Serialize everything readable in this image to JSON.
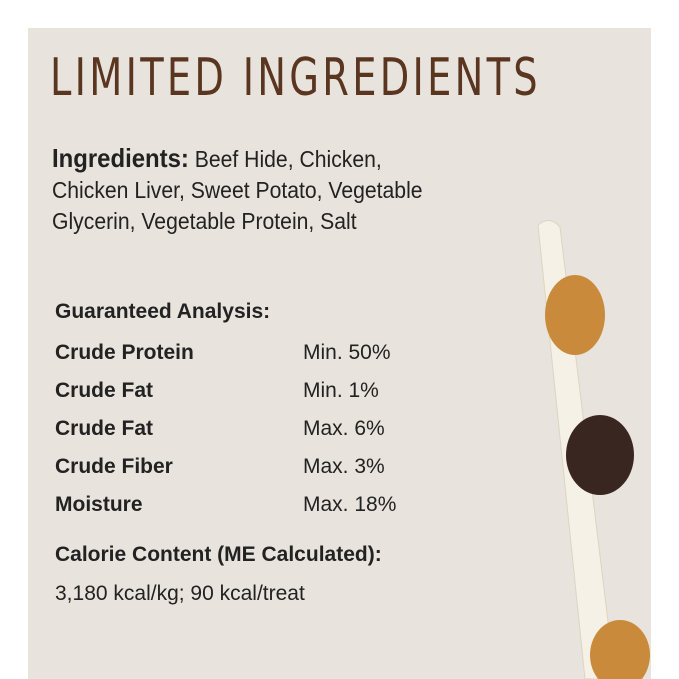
{
  "title": "LIMITED INGREDIENTS",
  "ingredients": {
    "label": "Ingredients:",
    "text": "Beef Hide, Chicken, Chicken Liver, Sweet Potato, Vegetable Glycerin, Vegetable Protein, Salt"
  },
  "analysis": {
    "heading": "Guaranteed Analysis:",
    "rows": [
      {
        "k": "Crude Protein",
        "v": "Min. 50%"
      },
      {
        "k": "Crude Fat",
        "v": "Min. 1%"
      },
      {
        "k": "Crude Fat",
        "v": "Max. 6%"
      },
      {
        "k": "Crude Fiber",
        "v": "Max. 3%"
      },
      {
        "k": "Moisture",
        "v": "Max. 18%"
      }
    ]
  },
  "calorie": {
    "heading": "Calorie Content (ME Calculated):",
    "value": "3,180 kcal/kg; 90 kcal/treat"
  }
}
